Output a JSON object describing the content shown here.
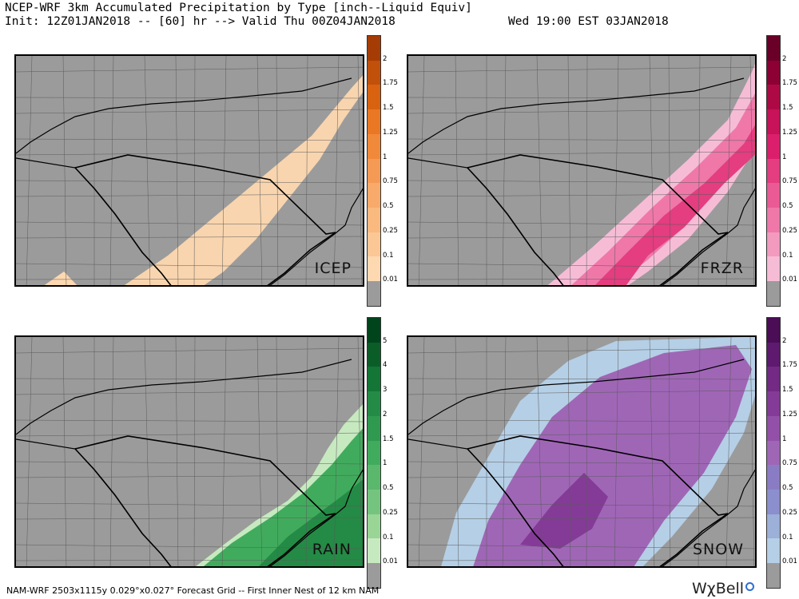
{
  "header": {
    "title": "NCEP-WRF 3km Accumulated Precipitation by Type [inch--Liquid Equiv]",
    "init": "Init: 12Z01JAN2018 -- [60] hr --> Valid Thu 00Z04JAN2018",
    "valid_local": "Wed 19:00 EST 03JAN2018"
  },
  "panels": [
    {
      "id": "icep",
      "label": "ICEP",
      "ticks": [
        "2",
        "1.75",
        "1.5",
        "1.25",
        "1",
        "0.75",
        "0.5",
        "0.25",
        "0.1",
        "0.01"
      ],
      "colors": [
        "#a63c05",
        "#c0500a",
        "#d8620f",
        "#ea7723",
        "#f1893a",
        "#f49a54",
        "#f7aa69",
        "#f9b97f",
        "#fbc795",
        "#fdd8b0",
        "#9b9b9b"
      ]
    },
    {
      "id": "frzr",
      "label": "FRZR",
      "ticks": [
        "2",
        "1.75",
        "1.5",
        "1.25",
        "1",
        "0.75",
        "0.5",
        "0.25",
        "0.1",
        "0.01"
      ],
      "colors": [
        "#6a0027",
        "#8c0034",
        "#ad0a45",
        "#c81259",
        "#db1f6c",
        "#e43d80",
        "#ea5a94",
        "#ef78a9",
        "#f39abf",
        "#f6bcd6",
        "#9b9b9b"
      ]
    },
    {
      "id": "rain",
      "label": "RAIN",
      "ticks": [
        "5",
        "4",
        "3",
        "2",
        "1.5",
        "1",
        "0.5",
        "0.25",
        "0.1",
        "0.01"
      ],
      "colors": [
        "#00441b",
        "#0b5d28",
        "#137536",
        "#238b45",
        "#2f9a4f",
        "#41ab5d",
        "#5ab86d",
        "#74c47f",
        "#99d594",
        "#c7e9c0",
        "#9b9b9b"
      ]
    },
    {
      "id": "snow",
      "label": "SNOW",
      "ticks": [
        "2",
        "1.75",
        "1.5",
        "1.25",
        "1",
        "0.75",
        "0.5",
        "0.25",
        "0.1",
        "0.01"
      ],
      "colors": [
        "#4a0d56",
        "#5e1a6e",
        "#722a84",
        "#843b97",
        "#9350a8",
        "#9f66b6",
        "#8a7cc4",
        "#8b8fce",
        "#9cb0d8",
        "#b5cfe6",
        "#9b9b9b"
      ]
    }
  ],
  "footer": "NAM-WRF 2503x1115y 0.029°x0.027° Forecast Grid -- First Inner Nest of 12 km NAM",
  "logo": "WχBell"
}
